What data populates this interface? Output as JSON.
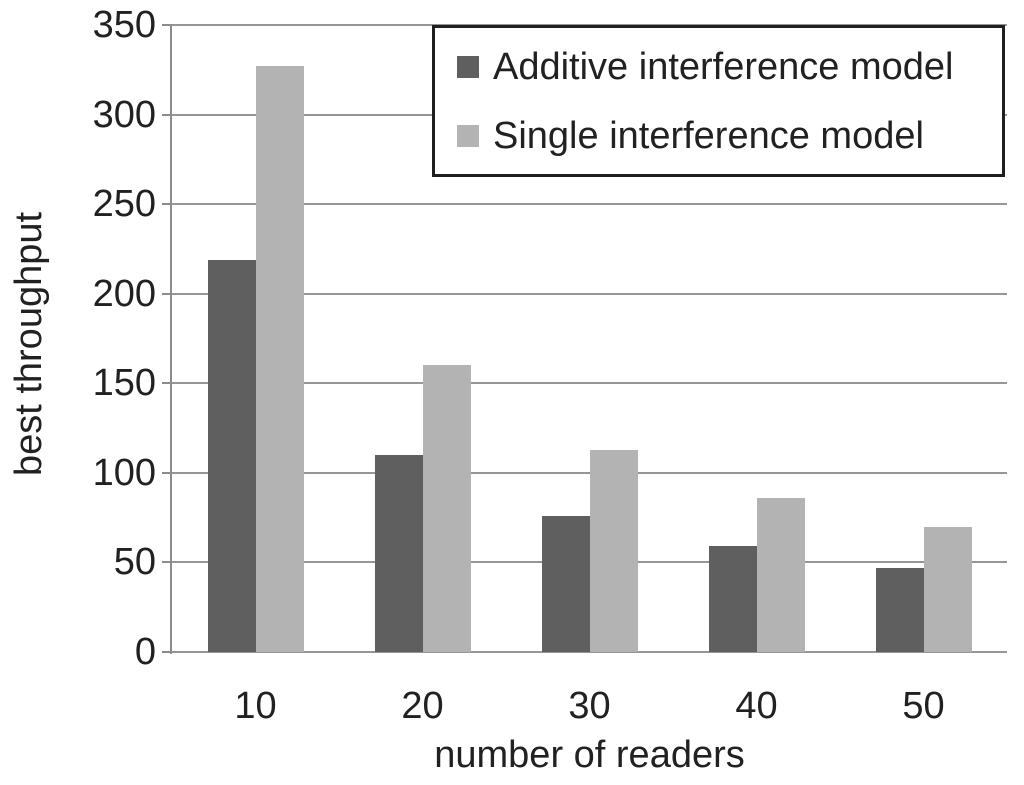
{
  "chart_data": {
    "type": "bar",
    "title": "",
    "xlabel": "number of readers",
    "ylabel": "best throughput",
    "categories": [
      "10",
      "20",
      "30",
      "40",
      "50"
    ],
    "series": [
      {
        "name": "Additive interference model",
        "color": "#5F5F5F",
        "values": [
          219,
          110,
          76,
          59,
          47
        ]
      },
      {
        "name": "Single interference model",
        "color": "#B3B3B3",
        "values": [
          327,
          160,
          113,
          86,
          70
        ]
      }
    ],
    "ylim": [
      0,
      350
    ],
    "ytick_step": 50,
    "grid": "on",
    "legend_position": "top-right"
  },
  "colors": {
    "background": "#FFFFFF",
    "gridline": "#969696",
    "axis_line": "#8C8C8C",
    "text": "#212121",
    "legend_border": "#1F1F1F",
    "legend_background": "#FFFFFF"
  }
}
